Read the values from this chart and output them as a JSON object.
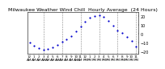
{
  "title": "Milwaukee Weather Wind Chill  Hourly Average  (24 Hours)",
  "hours": [
    0,
    1,
    2,
    3,
    4,
    5,
    6,
    7,
    8,
    9,
    10,
    11,
    12,
    13,
    14,
    15,
    16,
    17,
    18,
    19,
    20,
    21,
    22,
    23
  ],
  "wind_chill": [
    -10,
    -13,
    -16,
    -18,
    -17,
    -15,
    -12,
    -9,
    -6,
    -2,
    3,
    8,
    14,
    18,
    20,
    21,
    19,
    15,
    9,
    4,
    1,
    -3,
    -8,
    -14
  ],
  "dot_color": "#0000cc",
  "bg_color": "#ffffff",
  "plot_bg": "#ffffff",
  "grid_color": "#888888",
  "title_color": "#000000",
  "ylim": [
    -22,
    25
  ],
  "xlim": [
    -0.5,
    23.5
  ],
  "grid_lines_x": [
    3,
    7,
    11,
    15,
    19,
    23
  ],
  "yticks": [
    -20,
    -10,
    0,
    10,
    20
  ],
  "title_fontsize": 4.5,
  "tick_fontsize": 3.5,
  "dot_size": 2.5
}
